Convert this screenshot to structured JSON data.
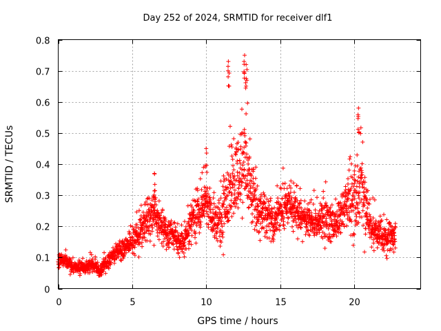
{
  "chart_data": {
    "type": "scatter",
    "title": "Day 252 of 2024, SRMTID for receiver dlf1",
    "xlabel": "GPS time / hours",
    "ylabel": "SRMTID / TECUs",
    "xlim": [
      0,
      24.5
    ],
    "ylim": [
      0,
      0.8
    ],
    "x_ticks": [
      0,
      5,
      10,
      15,
      20
    ],
    "x_tick_labels": [
      "0",
      "5",
      "10",
      "15",
      "20"
    ],
    "y_ticks": [
      0,
      0.1,
      0.2,
      0.3,
      0.4,
      0.5,
      0.6,
      0.7,
      0.8
    ],
    "y_tick_labels": [
      "0",
      "0.1",
      "0.2",
      "0.3",
      "0.4",
      "0.5",
      "0.6",
      "0.7",
      "0.8"
    ],
    "grid": true,
    "marker": "plus",
    "color": "#ff0000",
    "x_range_observed": [
      0,
      22.8
    ],
    "profile": {
      "x": [
        0,
        0.5,
        1,
        1.5,
        2,
        2.5,
        2.8,
        3,
        3.5,
        4,
        4.5,
        5,
        5.5,
        6,
        6.5,
        7,
        7.5,
        8,
        8.5,
        9,
        9.5,
        10,
        10.5,
        11,
        11.5,
        12,
        12.5,
        13,
        13.5,
        14,
        14.5,
        15,
        15.5,
        16,
        16.5,
        17,
        17.5,
        18,
        18.5,
        19,
        19.5,
        20,
        20.5,
        21,
        21.5,
        22,
        22.8
      ],
      "center": [
        0.09,
        0.09,
        0.07,
        0.07,
        0.07,
        0.08,
        0.05,
        0.07,
        0.09,
        0.12,
        0.13,
        0.15,
        0.18,
        0.22,
        0.24,
        0.2,
        0.18,
        0.16,
        0.14,
        0.22,
        0.25,
        0.28,
        0.22,
        0.2,
        0.3,
        0.35,
        0.4,
        0.32,
        0.25,
        0.24,
        0.22,
        0.25,
        0.27,
        0.26,
        0.23,
        0.22,
        0.2,
        0.22,
        0.2,
        0.22,
        0.28,
        0.3,
        0.32,
        0.22,
        0.18,
        0.17,
        0.16
      ],
      "spread": [
        0.03,
        0.03,
        0.025,
        0.025,
        0.025,
        0.03,
        0.02,
        0.025,
        0.03,
        0.035,
        0.04,
        0.05,
        0.07,
        0.08,
        0.08,
        0.07,
        0.06,
        0.05,
        0.05,
        0.08,
        0.08,
        0.09,
        0.08,
        0.1,
        0.15,
        0.17,
        0.2,
        0.12,
        0.09,
        0.08,
        0.08,
        0.08,
        0.08,
        0.08,
        0.07,
        0.07,
        0.07,
        0.1,
        0.07,
        0.07,
        0.12,
        0.15,
        0.17,
        0.08,
        0.07,
        0.06,
        0.05
      ]
    },
    "notable_points": [
      {
        "x": 11.5,
        "y": 0.73
      },
      {
        "x": 12.6,
        "y": 0.75
      },
      {
        "x": 12.7,
        "y": 0.72
      },
      {
        "x": 20.3,
        "y": 0.58
      },
      {
        "x": 10.0,
        "y": 0.45
      },
      {
        "x": 6.5,
        "y": 0.37
      }
    ],
    "n_points": 2400,
    "seed": 252
  }
}
